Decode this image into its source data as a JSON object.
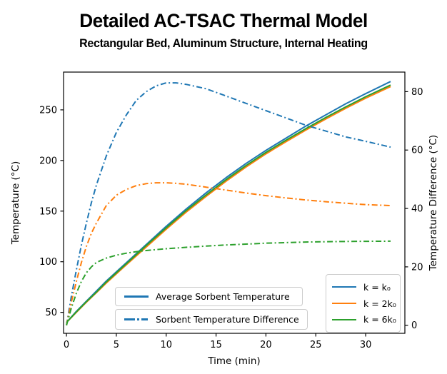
{
  "title": "Detailed AC-TSAC Thermal Model",
  "subtitle": "Rectangular Bed, Aluminum Structure, Internal Heating",
  "colors": {
    "blue": "#1f77b4",
    "orange": "#ff7f0e",
    "green": "#2ca02c",
    "axis": "#000000"
  },
  "chart_data": {
    "type": "line",
    "title": "Detailed AC-TSAC Thermal Model",
    "subtitle": "Rectangular Bed, Aluminum Structure, Internal Heating",
    "xlabel": "Time (min)",
    "ylabel_left": "Temperature (°C)",
    "ylabel_right": "Temperature Difference (°C)",
    "grid": false,
    "x_ticks": [
      0,
      5,
      10,
      15,
      20,
      25,
      30
    ],
    "left_ticks": [
      50,
      100,
      150,
      200,
      250
    ],
    "right_ticks": [
      0,
      20,
      40,
      60,
      80
    ],
    "xlim": [
      -0.29,
      33.93
    ],
    "ylim_left": [
      29.3,
      287.3
    ],
    "ylim_right": [
      -2.76,
      86.7
    ],
    "series": [
      {
        "name": "Average Sorbent Temperature (k = k0)",
        "axis": "left",
        "style": "solid",
        "color": "#1f77b4",
        "x": [
          0,
          1,
          2,
          3,
          4,
          5,
          6,
          8,
          10,
          12,
          14,
          16,
          18,
          20,
          22,
          24,
          26,
          28,
          30,
          32.5
        ],
        "y": [
          40,
          51,
          61,
          71,
          81,
          90,
          99,
          117,
          135,
          152,
          168,
          183,
          197,
          210,
          222,
          234,
          245,
          256,
          266,
          278
        ]
      },
      {
        "name": "Average Sorbent Temperature (k = 2k0)",
        "axis": "left",
        "style": "solid",
        "color": "#ff7f0e",
        "x": [
          0,
          1,
          2,
          3,
          4,
          5,
          6,
          8,
          10,
          12,
          14,
          16,
          18,
          20,
          22,
          24,
          26,
          28,
          30,
          32.5
        ],
        "y": [
          40,
          50,
          60,
          69.5,
          79,
          88,
          97,
          114.5,
          132,
          149,
          164.5,
          179.5,
          193.5,
          206.5,
          218.5,
          230,
          241,
          251.5,
          261.5,
          273
        ]
      },
      {
        "name": "Average Sorbent Temperature (k = 6k0)",
        "axis": "left",
        "style": "solid",
        "color": "#2ca02c",
        "x": [
          0,
          1,
          2,
          3,
          4,
          5,
          6,
          8,
          10,
          12,
          14,
          16,
          18,
          20,
          22,
          24,
          26,
          28,
          30,
          32.5
        ],
        "y": [
          40,
          50.5,
          60.5,
          70,
          80,
          89,
          98,
          116,
          133.5,
          150.5,
          166,
          181,
          195,
          208,
          220,
          231.5,
          242.5,
          253,
          263,
          274.5
        ]
      },
      {
        "name": "Sorbent Temperature Difference (k = k0)",
        "axis": "right",
        "style": "dashdot",
        "color": "#1f77b4",
        "x": [
          0,
          0.5,
          1,
          1.5,
          2,
          2.5,
          3,
          4,
          5,
          6,
          7,
          8,
          9,
          10,
          11,
          12,
          14,
          16,
          18,
          20,
          22,
          24,
          26,
          28,
          30,
          32.5
        ],
        "y": [
          0,
          10,
          19,
          27.5,
          35,
          42,
          48,
          58,
          66,
          72,
          77,
          80,
          82,
          83,
          83,
          82.5,
          81,
          78.5,
          76,
          73.5,
          71,
          68.5,
          66.5,
          64.5,
          63,
          61
        ]
      },
      {
        "name": "Sorbent Temperature Difference (k = 2k0)",
        "axis": "right",
        "style": "dashdot",
        "color": "#ff7f0e",
        "x": [
          0,
          0.5,
          1,
          1.5,
          2,
          2.5,
          3,
          4,
          5,
          6,
          7,
          8,
          9,
          10,
          11,
          12,
          14,
          16,
          18,
          20,
          22,
          24,
          26,
          28,
          30,
          32.5
        ],
        "y": [
          0,
          8,
          15,
          21.5,
          27,
          31.5,
          35,
          41,
          44.5,
          46.5,
          47.8,
          48.5,
          48.8,
          48.8,
          48.6,
          48.3,
          47.3,
          46.3,
          45.3,
          44.4,
          43.6,
          42.9,
          42.3,
          41.8,
          41.3,
          41
        ]
      },
      {
        "name": "Sorbent Temperature Difference (k = 6k0)",
        "axis": "right",
        "style": "dashdot",
        "color": "#2ca02c",
        "x": [
          0,
          0.5,
          1,
          1.5,
          2,
          2.5,
          3,
          4,
          5,
          6,
          7,
          8,
          9,
          10,
          11,
          12,
          14,
          16,
          18,
          20,
          22,
          24,
          26,
          28,
          30,
          32.5
        ],
        "y": [
          0,
          6,
          11,
          15,
          18,
          20,
          21.5,
          23,
          24,
          24.7,
          25.2,
          25.6,
          25.9,
          26.2,
          26.45,
          26.7,
          27.1,
          27.5,
          27.8,
          28.1,
          28.3,
          28.5,
          28.6,
          28.7,
          28.75,
          28.8
        ]
      }
    ],
    "legend_style": {
      "items": [
        {
          "label": "Average Sorbent Temperature",
          "style": "solid",
          "color": "#1f77b4"
        },
        {
          "label": "Sorbent Temperature Difference",
          "style": "dashdot",
          "color": "#1f77b4"
        }
      ],
      "position": "lower center"
    },
    "legend_k": {
      "items": [
        {
          "label": "k = k₀",
          "color": "#1f77b4"
        },
        {
          "label": "k = 2k₀",
          "color": "#ff7f0e"
        },
        {
          "label": "k = 6k₀",
          "color": "#2ca02c"
        }
      ],
      "position": "lower right"
    }
  }
}
